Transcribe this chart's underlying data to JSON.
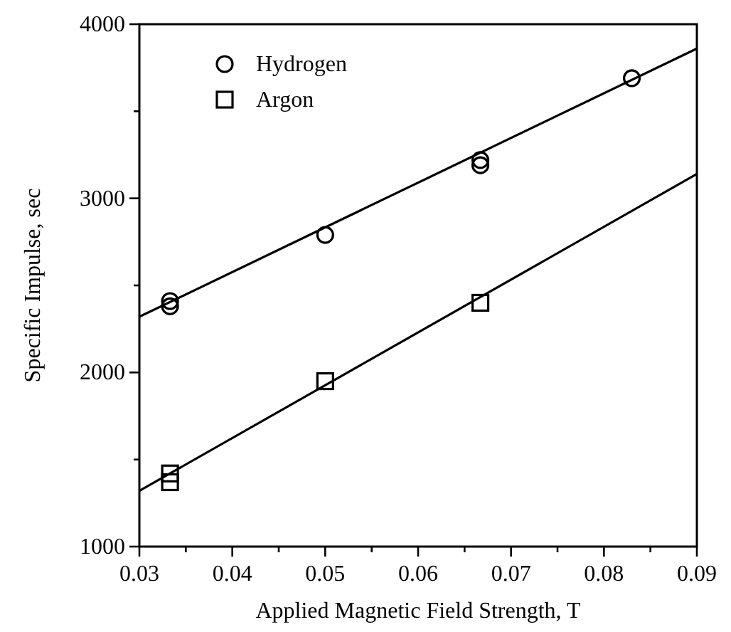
{
  "chart_data": {
    "type": "scatter",
    "xlabel": "Applied Magnetic Field Strength, T",
    "ylabel": "Specific Impulse, sec",
    "xlim": [
      0.03,
      0.09
    ],
    "ylim": [
      1000,
      4000
    ],
    "xticks": [
      0.03,
      {
        "value": 0.035,
        "label": null
      },
      0.04,
      {
        "value": 0.045,
        "label": null
      },
      0.05,
      {
        "value": 0.055,
        "label": null
      },
      0.06,
      {
        "value": 0.065,
        "label": null
      },
      0.07,
      {
        "value": 0.075,
        "label": null
      },
      0.08,
      {
        "value": 0.085,
        "label": null
      },
      0.09
    ],
    "yticks": [
      1000,
      {
        "value": 1500,
        "label": null
      },
      2000,
      {
        "value": 2500,
        "label": null
      },
      3000,
      {
        "value": 3500,
        "label": null
      },
      4000
    ],
    "grid": false,
    "legend": "top left",
    "series": [
      {
        "name": "Hydrogen",
        "marker": "circle",
        "color": "#000000",
        "x": [
          0.0333,
          0.0333,
          0.05,
          0.0667,
          0.0667,
          0.083
        ],
        "values": [
          2410,
          2380,
          2790,
          3220,
          3190,
          3690
        ]
      },
      {
        "name": "Argon",
        "marker": "square",
        "color": "#000000",
        "x": [
          0.0333,
          0.0333,
          0.05,
          0.0667
        ],
        "values": [
          1420,
          1370,
          1950,
          2400
        ]
      },
      {
        "type": "line",
        "color": "#000000",
        "x": [
          0.03,
          0.09
        ],
        "values": [
          2320,
          3860
        ]
      },
      {
        "type": "line",
        "color": "#000000",
        "x": [
          0.03,
          0.09
        ],
        "values": [
          1320,
          3140
        ]
      }
    ]
  }
}
